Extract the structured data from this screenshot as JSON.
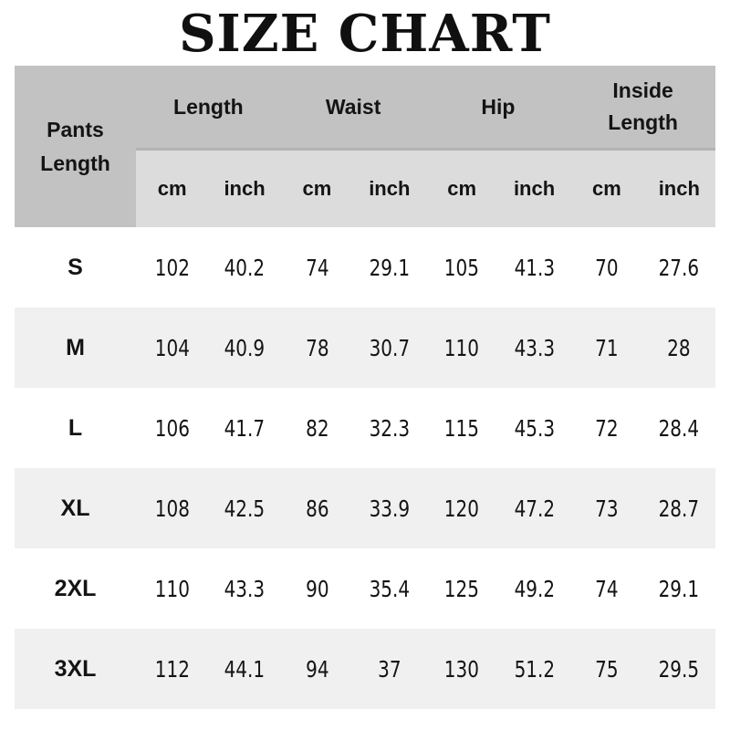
{
  "title": "SIZE CHART",
  "colors": {
    "header_bg": "#c2c2c2",
    "unit_row_bg": "#dcdcdc",
    "alt_row_bg": "#f0f0f0",
    "row_bg": "#ffffff",
    "text": "#141414",
    "header_divider": "#b3b3b3"
  },
  "chart_data": {
    "type": "table",
    "title": "SIZE CHART",
    "corner_header": "Pants Length",
    "column_groups": [
      {
        "label": "Length",
        "units": [
          "cm",
          "inch"
        ]
      },
      {
        "label": "Waist",
        "units": [
          "cm",
          "inch"
        ]
      },
      {
        "label": "Hip",
        "units": [
          "cm",
          "inch"
        ]
      },
      {
        "label": "Inside Length",
        "units": [
          "cm",
          "inch"
        ]
      }
    ],
    "unit_row": [
      "cm",
      "inch",
      "cm",
      "inch",
      "cm",
      "inch",
      "cm",
      "inch"
    ],
    "rows": [
      {
        "size": "S",
        "values": [
          102,
          40.2,
          74,
          29.1,
          105,
          41.3,
          70,
          27.6
        ]
      },
      {
        "size": "M",
        "values": [
          104,
          40.9,
          78,
          30.7,
          110,
          43.3,
          71,
          28
        ]
      },
      {
        "size": "L",
        "values": [
          106,
          41.7,
          82,
          32.3,
          115,
          45.3,
          72,
          28.4
        ]
      },
      {
        "size": "XL",
        "values": [
          108,
          42.5,
          86,
          33.9,
          120,
          47.2,
          73,
          28.7
        ]
      },
      {
        "size": "2XL",
        "values": [
          110,
          43.3,
          90,
          35.4,
          125,
          49.2,
          74,
          29.1
        ]
      },
      {
        "size": "3XL",
        "values": [
          112,
          44.1,
          94,
          37,
          130,
          51.2,
          75,
          29.5
        ]
      }
    ]
  }
}
